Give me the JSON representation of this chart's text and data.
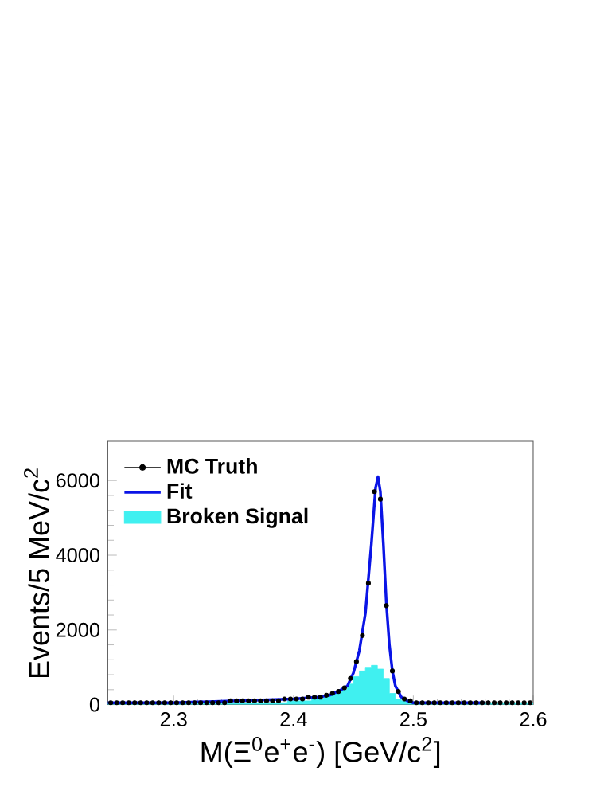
{
  "chart_data": {
    "type": "scatter",
    "xlabel": "M(Ξ$^{0}$e$^{+}$e$^{-}$) [GeV/c$^{2}$]",
    "ylabel": "Events/5 MeV/c$^{2}$",
    "xlim": [
      2.245,
      2.6
    ],
    "ylim": [
      0,
      7050
    ],
    "xticks": [
      2.3,
      2.4,
      2.5,
      2.6
    ],
    "yticks": [
      0,
      2000,
      4000,
      6000
    ],
    "legend": "top left",
    "series": [
      {
        "name": "MC Truth",
        "marker": "circle",
        "color": "#000000",
        "x": [
          2.2475,
          2.2525,
          2.2575,
          2.2625,
          2.2675,
          2.2725,
          2.2775,
          2.2825,
          2.2875,
          2.2925,
          2.2975,
          2.3025,
          2.3075,
          2.3125,
          2.3175,
          2.3225,
          2.3275,
          2.3325,
          2.3375,
          2.3425,
          2.3475,
          2.3525,
          2.3575,
          2.3625,
          2.3675,
          2.3725,
          2.3775,
          2.3825,
          2.3875,
          2.3925,
          2.3975,
          2.4025,
          2.4075,
          2.4125,
          2.4175,
          2.4225,
          2.4275,
          2.4325,
          2.4375,
          2.4425,
          2.4475,
          2.4525,
          2.4575,
          2.4625,
          2.4675,
          2.4725,
          2.4775,
          2.4825,
          2.4875,
          2.4925,
          2.4975,
          2.5025,
          2.5075,
          2.5125,
          2.5175,
          2.5225,
          2.5275,
          2.5325,
          2.5375,
          2.5425,
          2.5475,
          2.5525,
          2.5575,
          2.5625,
          2.5675,
          2.5725,
          2.5775,
          2.5825,
          2.5875,
          2.5925,
          2.5975
        ],
        "values": [
          50,
          50,
          50,
          50,
          50,
          50,
          50,
          50,
          50,
          50,
          50,
          50,
          50,
          50,
          50,
          50,
          50,
          50,
          50,
          50,
          100,
          100,
          100,
          100,
          100,
          100,
          100,
          100,
          100,
          150,
          150,
          150,
          150,
          200,
          200,
          200,
          250,
          300,
          350,
          450,
          700,
          1150,
          1850,
          3250,
          5700,
          5500,
          2650,
          900,
          350,
          150,
          100,
          50,
          50,
          50,
          50,
          50,
          50,
          50,
          50,
          50,
          50,
          50,
          50,
          50,
          50,
          50,
          50,
          50,
          50,
          50,
          50
        ]
      },
      {
        "name": "Fit",
        "type": "line",
        "line_style": "solid",
        "color": "#0a14e6",
        "x": [
          2.245,
          2.3,
          2.35,
          2.4,
          2.42,
          2.43,
          2.44,
          2.445,
          2.45,
          2.455,
          2.46,
          2.465,
          2.4685,
          2.4705,
          2.4725,
          2.475,
          2.4775,
          2.48,
          2.4825,
          2.485,
          2.49,
          2.495,
          2.5,
          2.51,
          2.53,
          2.56
        ],
        "values": [
          50,
          50,
          100,
          150,
          200,
          250,
          400,
          500,
          850,
          1450,
          2450,
          4300,
          5800,
          6100,
          5700,
          4300,
          2700,
          1600,
          900,
          500,
          200,
          100,
          50,
          50,
          50,
          50
        ]
      },
      {
        "name": "Broken Signal",
        "type": "histogram",
        "color": "#40f0f0",
        "bins": [
          2.245,
          2.25,
          2.255,
          2.26,
          2.265,
          2.27,
          2.275,
          2.28,
          2.285,
          2.29,
          2.295,
          2.3,
          2.305,
          2.31,
          2.315,
          2.32,
          2.325,
          2.33,
          2.335,
          2.34,
          2.345,
          2.35,
          2.355,
          2.36,
          2.365,
          2.37,
          2.375,
          2.38,
          2.385,
          2.39,
          2.395,
          2.4,
          2.405,
          2.41,
          2.415,
          2.42,
          2.425,
          2.43,
          2.435,
          2.44,
          2.445,
          2.45,
          2.455,
          2.46,
          2.465,
          2.47,
          2.475,
          2.48,
          2.485,
          2.49,
          2.495,
          2.5,
          2.505,
          2.51,
          2.515,
          2.52,
          2.525,
          2.53,
          2.535,
          2.54,
          2.545,
          2.55,
          2.555,
          2.56,
          2.565,
          2.57,
          2.575,
          2.58,
          2.585,
          2.59,
          2.595,
          2.6
        ],
        "values": [
          50,
          50,
          50,
          50,
          50,
          50,
          50,
          50,
          50,
          50,
          50,
          50,
          50,
          50,
          50,
          50,
          50,
          50,
          50,
          50,
          50,
          50,
          50,
          50,
          50,
          50,
          50,
          50,
          50,
          50,
          100,
          100,
          100,
          100,
          150,
          150,
          200,
          250,
          300,
          400,
          550,
          750,
          900,
          1000,
          1050,
          950,
          700,
          300,
          150,
          100,
          50,
          50,
          50,
          50,
          50,
          50,
          50,
          50,
          50,
          50,
          50,
          50,
          50,
          50,
          50,
          50,
          50,
          50,
          50,
          50,
          50
        ]
      }
    ]
  }
}
